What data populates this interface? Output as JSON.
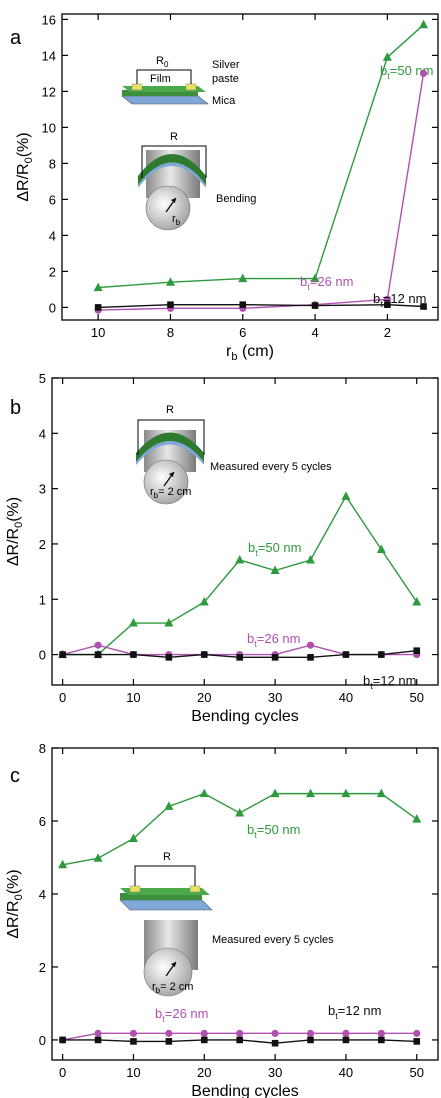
{
  "chart_data": [
    {
      "panel": "a",
      "type": "line",
      "xlabel": "r_b (cm)",
      "ylabel": "ΔR/R0(%)",
      "xlim": [
        11,
        0.6
      ],
      "ylim": [
        -0.7,
        16.3
      ],
      "xticks": [
        10,
        8,
        6,
        4,
        2
      ],
      "yticks": [
        0,
        2,
        4,
        6,
        8,
        10,
        12,
        14,
        16
      ],
      "series": [
        {
          "name": "bt=50 nm",
          "label_main": "b",
          "label_sub": "t",
          "label_rest": "=50 nm",
          "color": "#2e9a3e",
          "marker": "triangle",
          "x": [
            10,
            8,
            6,
            4,
            2,
            1
          ],
          "y": [
            1.1,
            1.4,
            1.6,
            1.6,
            13.9,
            15.7
          ]
        },
        {
          "name": "bt=26 nm",
          "label_main": "b",
          "label_sub": "t",
          "label_rest": "=26 nm",
          "color": "#b050b0",
          "marker": "circle",
          "x": [
            10,
            8,
            6,
            4,
            2,
            1
          ],
          "y": [
            -0.15,
            -0.05,
            -0.05,
            0.15,
            0.45,
            13.0
          ]
        },
        {
          "name": "bt=12 nm",
          "label_main": "b",
          "label_sub": "t",
          "label_rest": "=12 nm",
          "color": "#111111",
          "marker": "square",
          "x": [
            10,
            8,
            6,
            4,
            2,
            1
          ],
          "y": [
            0.0,
            0.15,
            0.15,
            0.1,
            0.15,
            0.05
          ]
        }
      ],
      "inset_labels": {
        "r0": "R",
        "r0_sub": "0",
        "film": "Film",
        "silver": "Silver",
        "paste": "paste",
        "mica": "Mica",
        "r": "R",
        "rb": "r",
        "rb_sub": "b",
        "bending": "Bending"
      }
    },
    {
      "panel": "b",
      "type": "line",
      "xlabel": "Bending cycles",
      "ylabel": "ΔR/R0(%)",
      "xlim": [
        -1.5,
        53
      ],
      "ylim": [
        -0.55,
        5.0
      ],
      "xticks": [
        0,
        10,
        20,
        30,
        40,
        50
      ],
      "yticks": [
        0,
        1,
        2,
        3,
        4,
        5
      ],
      "series": [
        {
          "name": "bt=50 nm",
          "label_main": "b",
          "label_sub": "t",
          "label_rest": "=50 nm",
          "color": "#2e9a3e",
          "marker": "triangle",
          "x": [
            0,
            5,
            10,
            15,
            20,
            25,
            30,
            35,
            40,
            45,
            50
          ],
          "y": [
            0,
            0,
            0.57,
            0.57,
            0.95,
            1.71,
            1.52,
            1.71,
            2.86,
            1.9,
            0.95
          ]
        },
        {
          "name": "bt=26 nm",
          "label_main": "b",
          "label_sub": "t",
          "label_rest": "=26 nm",
          "color": "#b050b0",
          "marker": "circle",
          "x": [
            0,
            5,
            10,
            15,
            20,
            25,
            30,
            35,
            40,
            45,
            50
          ],
          "y": [
            0,
            0.17,
            0,
            0,
            0,
            0,
            0,
            0.17,
            0,
            0,
            0
          ]
        },
        {
          "name": "bt=12 nm",
          "label_main": "b",
          "label_sub": "t",
          "label_rest": "=12 nm",
          "color": "#111111",
          "marker": "square",
          "x": [
            0,
            5,
            10,
            15,
            20,
            25,
            30,
            35,
            40,
            45,
            50
          ],
          "y": [
            0,
            0,
            0,
            -0.05,
            0,
            -0.05,
            -0.05,
            -0.05,
            0,
            0,
            0.07
          ]
        }
      ],
      "inset_labels": {
        "r": "R",
        "rb": "r",
        "rb_sub": "b",
        "rb_rest": "= 2 cm",
        "measured": "Measured every 5 cycles"
      }
    },
    {
      "panel": "c",
      "type": "line",
      "xlabel": "Bending cycles",
      "ylabel": "ΔR/R0(%)",
      "xlim": [
        -1.5,
        53
      ],
      "ylim": [
        -0.55,
        8.0
      ],
      "xticks": [
        0,
        10,
        20,
        30,
        40,
        50
      ],
      "yticks": [
        0,
        2,
        4,
        6,
        8
      ],
      "series": [
        {
          "name": "bt=50 nm",
          "label_main": "b",
          "label_sub": "t",
          "label_rest": "=50 nm",
          "color": "#2e9a3e",
          "marker": "triangle",
          "x": [
            0,
            5,
            10,
            15,
            20,
            25,
            30,
            35,
            40,
            45,
            50
          ],
          "y": [
            4.8,
            4.98,
            5.52,
            6.4,
            6.75,
            6.22,
            6.75,
            6.75,
            6.75,
            6.75,
            6.05
          ]
        },
        {
          "name": "bt=26 nm",
          "label_main": "b",
          "label_sub": "t",
          "label_rest": "=26 nm",
          "color": "#b050b0",
          "marker": "circle",
          "x": [
            0,
            5,
            10,
            15,
            20,
            25,
            30,
            35,
            40,
            45,
            50
          ],
          "y": [
            0,
            0.18,
            0.18,
            0.18,
            0.18,
            0.18,
            0.18,
            0.18,
            0.18,
            0.18,
            0.18
          ]
        },
        {
          "name": "bt=12 nm",
          "label_main": "b",
          "label_sub": "t",
          "label_rest": "=12 nm",
          "color": "#111111",
          "marker": "square",
          "x": [
            0,
            5,
            10,
            15,
            20,
            25,
            30,
            35,
            40,
            45,
            50
          ],
          "y": [
            0,
            0,
            -0.04,
            -0.04,
            0,
            0,
            -0.09,
            0,
            0,
            0,
            -0.04
          ]
        }
      ],
      "inset_labels": {
        "r": "R",
        "rb": "r",
        "rb_sub": "b",
        "rb_rest": "= 2 cm",
        "measured": "Measured every 5 cycles"
      }
    }
  ]
}
